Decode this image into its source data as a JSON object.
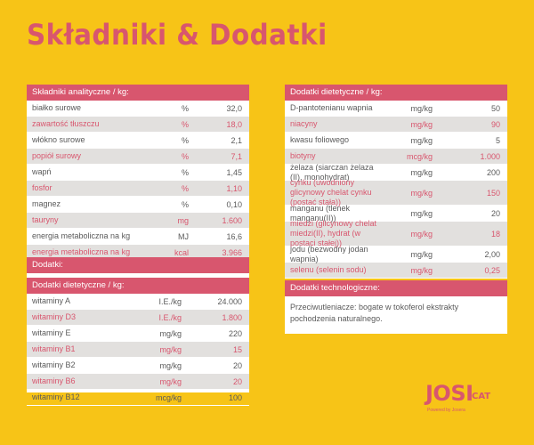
{
  "title": "Składniki & Dodatki",
  "analytical": {
    "header": "Składniki analityczne / kg:",
    "rows": [
      {
        "name": "białko surowe",
        "unit": "%",
        "value": "32,0"
      },
      {
        "name": "zawartość tłuszczu",
        "unit": "%",
        "value": "18,0"
      },
      {
        "name": "włókno surowe",
        "unit": "%",
        "value": "2,1"
      },
      {
        "name": "popiół surowy",
        "unit": "%",
        "value": "7,1"
      },
      {
        "name": "wapń",
        "unit": "%",
        "value": "1,45"
      },
      {
        "name": "fosfor",
        "unit": "%",
        "value": "1,10"
      },
      {
        "name": "magnez",
        "unit": "%",
        "value": "0,10"
      },
      {
        "name": "tauryny",
        "unit": "mg",
        "value": "1.600"
      },
      {
        "name": "energia metaboliczna na kg",
        "unit": "MJ",
        "value": "16,6"
      },
      {
        "name": "energia metaboliczna na kg",
        "unit": "kcal",
        "value": "3.966"
      }
    ]
  },
  "additives": {
    "header": "Dodatki:",
    "subheader": "Dodatki dietetyczne / kg:",
    "rows": [
      {
        "name": "witaminy A",
        "unit": "I.E./kg",
        "value": "24.000"
      },
      {
        "name": "witaminy D3",
        "unit": "I.E./kg",
        "value": "1.800"
      },
      {
        "name": "witaminy E",
        "unit": "mg/kg",
        "value": "220"
      },
      {
        "name": "witaminy B1",
        "unit": "mg/kg",
        "value": "15"
      },
      {
        "name": "witaminy B2",
        "unit": "mg/kg",
        "value": "20"
      },
      {
        "name": "witaminy B6",
        "unit": "mg/kg",
        "value": "20"
      },
      {
        "name": "witaminy B12",
        "unit": "mcg/kg",
        "value": "100"
      }
    ]
  },
  "dietary": {
    "header": "Dodatki dietetyczne / kg:",
    "rows": [
      {
        "name": "D-pantotenianu wapnia",
        "unit": "mg/kg",
        "value": "50"
      },
      {
        "name": "niacyny",
        "unit": "mg/kg",
        "value": "90"
      },
      {
        "name": "kwasu foliowego",
        "unit": "mg/kg",
        "value": "5"
      },
      {
        "name": "biotyny",
        "unit": "mcg/kg",
        "value": "1.000"
      },
      {
        "name": "żelaza (siarczan żelaza (II), monohydrat)",
        "unit": "mg/kg",
        "value": "200"
      },
      {
        "name": "cynku (uwodniony glicynowy chelat cynku (postać stała))",
        "unit": "mg/kg",
        "value": "150"
      },
      {
        "name": "manganu (tlenek manganu(II))",
        "unit": "mg/kg",
        "value": "20"
      },
      {
        "name": "miedzi (glicynowy chelat miedzi(II), hydrat (w postaci stałej))",
        "unit": "mg/kg",
        "value": "18"
      },
      {
        "name": "jodu (bezwodny jodan wapnia)",
        "unit": "mg/kg",
        "value": "2,00"
      },
      {
        "name": "selenu (selenin sodu)",
        "unit": "mg/kg",
        "value": "0,25"
      }
    ]
  },
  "technological": {
    "header": "Dodatki technologiczne:",
    "text": "Przeciwutleniacze: bogate w tokoferol ekstrakty pochodzenia naturalnego."
  },
  "logo": {
    "main": "JOSI",
    "cat": "CAT",
    "sub": "Powered by Josera"
  },
  "colors": {
    "background": "#f7c417",
    "accent": "#d8566e",
    "stripe": "#e2e0de"
  }
}
